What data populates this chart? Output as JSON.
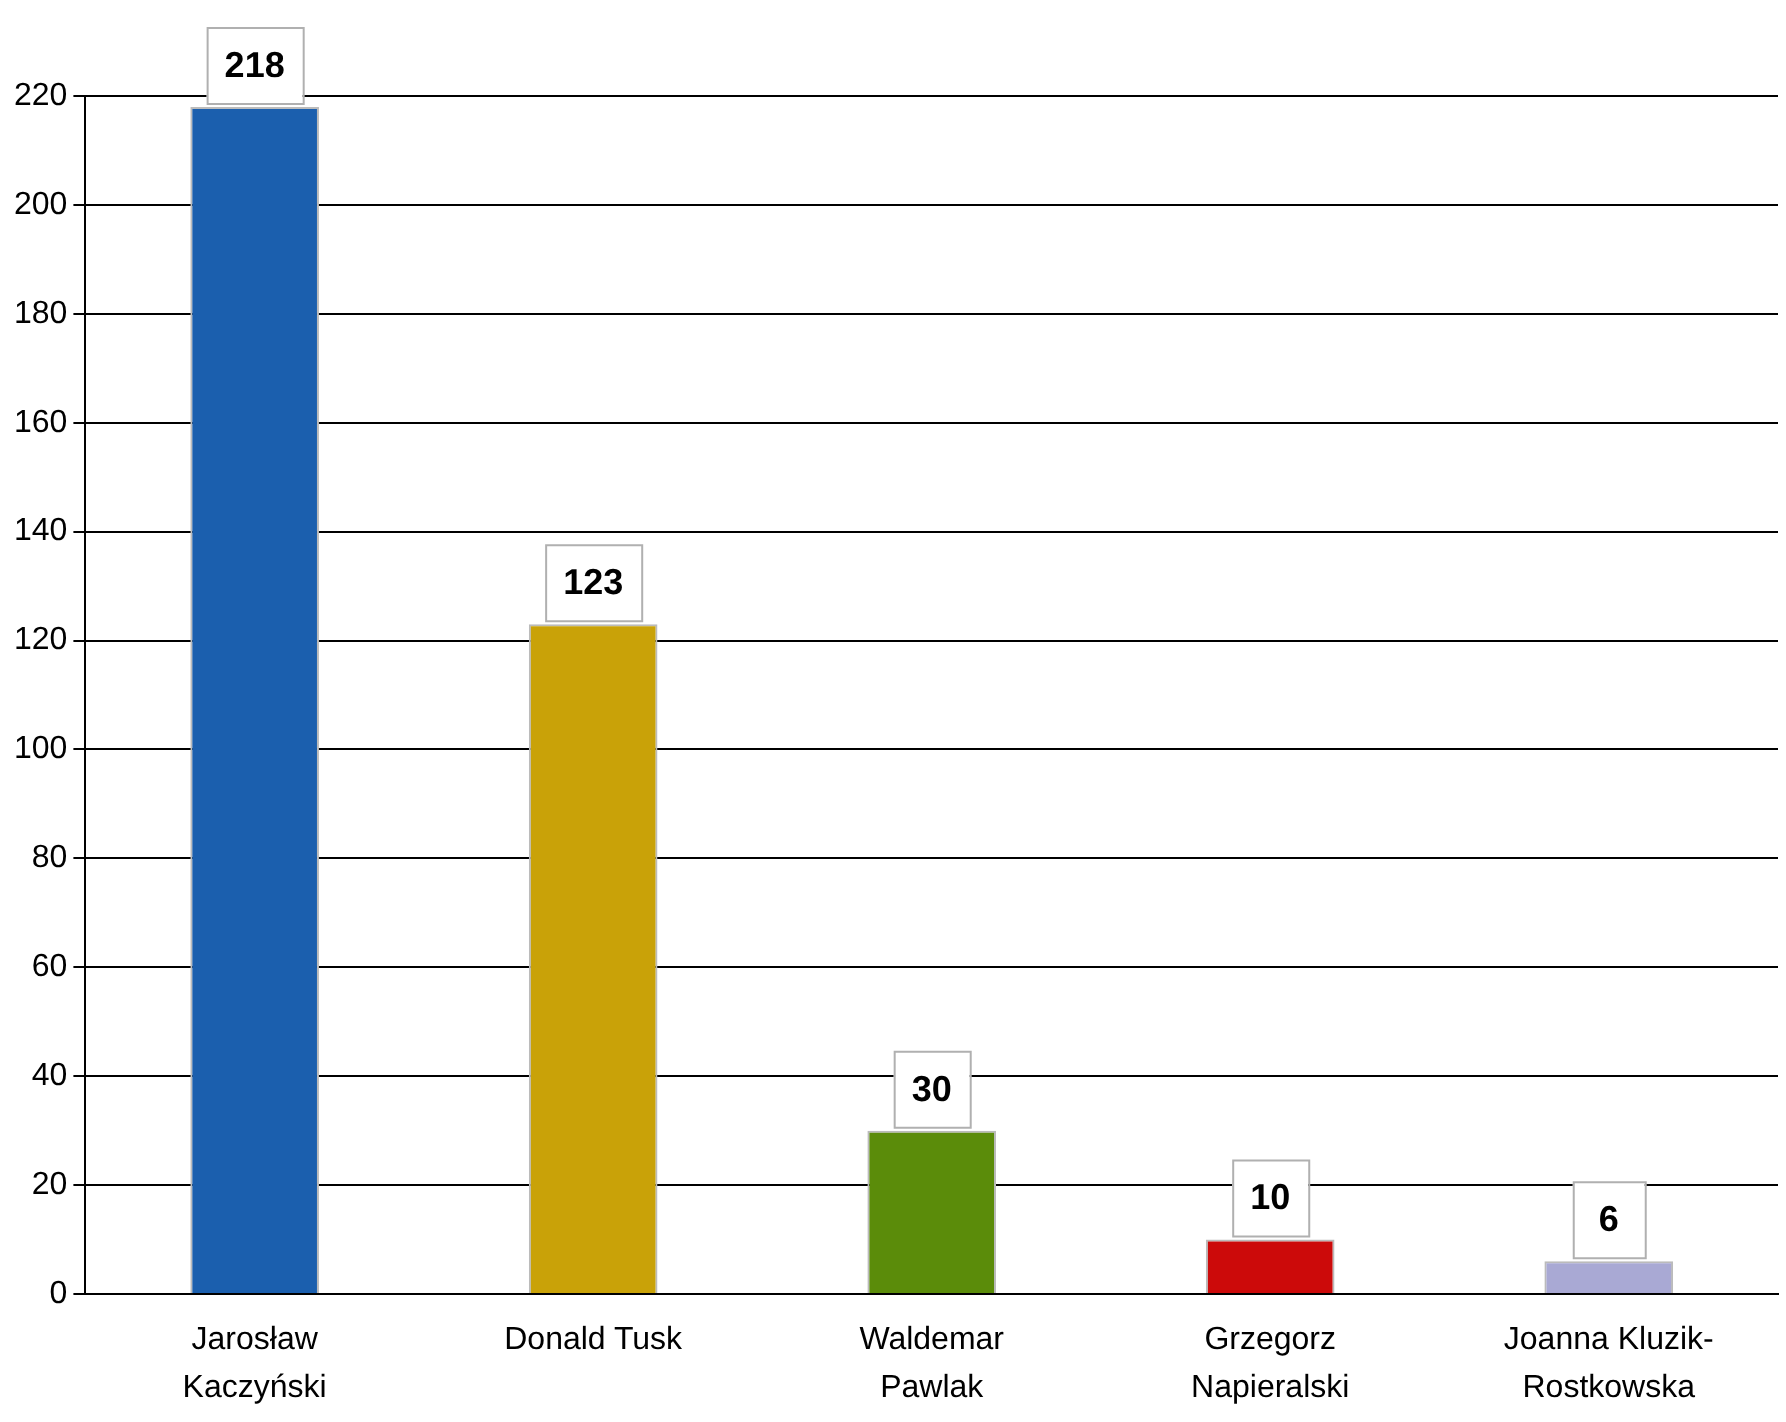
{
  "chart_data": {
    "type": "bar",
    "categories": [
      "Jarosław Kaczyński",
      "Donald Tusk",
      "Waldemar Pawlak",
      "Grzegorz Napieralski",
      "Joanna Kluzik-Rostkowska"
    ],
    "values": [
      218,
      123,
      30,
      10,
      6
    ],
    "colors": [
      "#1b5fae",
      "#c9a208",
      "#5b8c0a",
      "#cc0a0a",
      "#a9a9d4"
    ],
    "ylim": [
      0,
      220
    ],
    "yticks": [
      0,
      20,
      40,
      60,
      80,
      100,
      120,
      140,
      160,
      180,
      200,
      220
    ],
    "grid": "y",
    "data_labels": true
  }
}
